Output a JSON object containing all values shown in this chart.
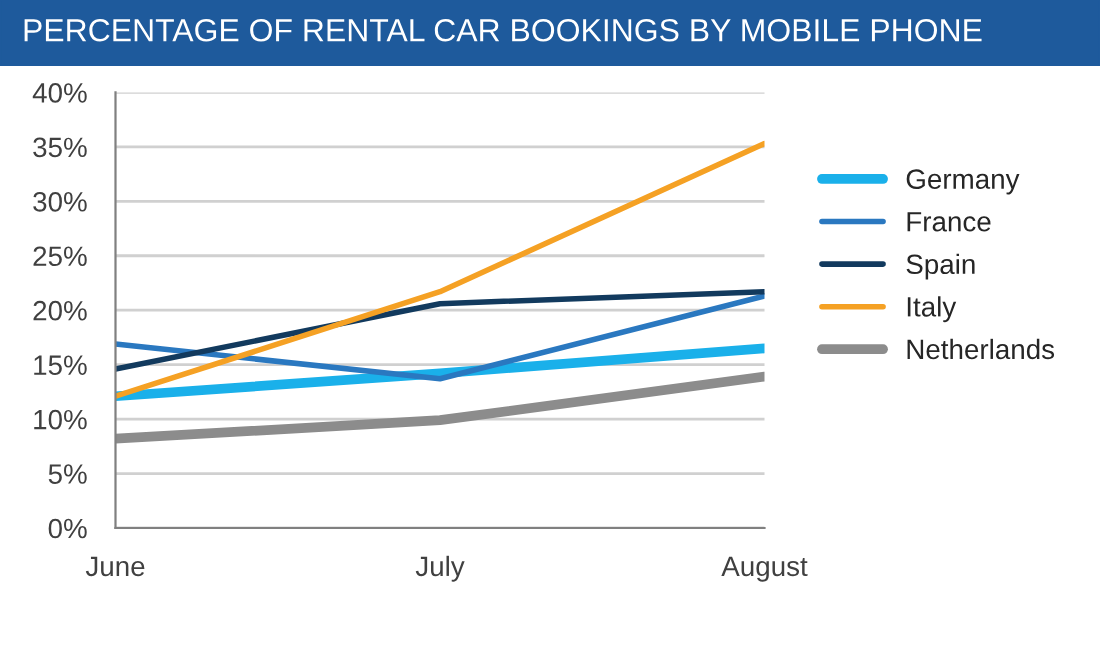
{
  "chart_data": {
    "type": "line",
    "title": "PERCENTAGE OF RENTAL CAR BOOKINGS BY MOBILE PHONE",
    "categories": [
      "June",
      "July",
      "August"
    ],
    "series": [
      {
        "name": "Germany",
        "color": "#1ab0ea",
        "values": [
          12.1,
          14.2,
          16.5
        ]
      },
      {
        "name": "France",
        "color": "#2a78c0",
        "values": [
          16.9,
          13.7,
          21.3
        ]
      },
      {
        "name": "Spain",
        "color": "#123a5e",
        "values": [
          14.6,
          20.6,
          21.7
        ]
      },
      {
        "name": "Italy",
        "color": "#f5a124",
        "values": [
          12.1,
          21.7,
          35.3
        ]
      },
      {
        "name": "Netherlands",
        "color": "#8c8c8c",
        "values": [
          8.2,
          9.9,
          13.9
        ]
      }
    ],
    "ylim": [
      0,
      40
    ],
    "yticks": [
      {
        "value": 0,
        "label": "0%"
      },
      {
        "value": 5,
        "label": "5%"
      },
      {
        "value": 10,
        "label": "10%"
      },
      {
        "value": 15,
        "label": "15%"
      },
      {
        "value": 20,
        "label": "20%"
      },
      {
        "value": 25,
        "label": "25%"
      },
      {
        "value": 30,
        "label": "30%"
      },
      {
        "value": 35,
        "label": "35%"
      },
      {
        "value": 40,
        "label": "40%"
      }
    ],
    "grid": "y",
    "legend": "right",
    "marker": "none",
    "line_style": "solid"
  }
}
